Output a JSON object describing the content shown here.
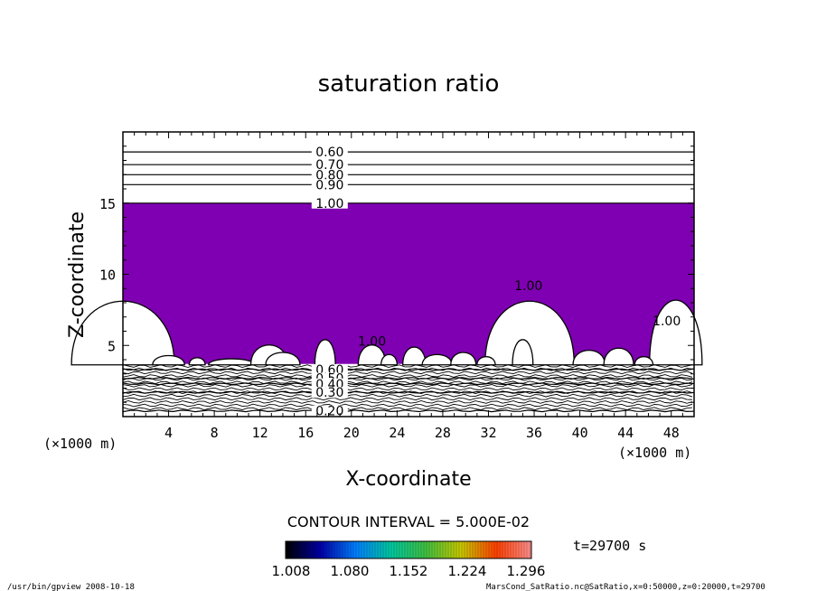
{
  "chart_data": {
    "type": "contour",
    "title": "saturation ratio",
    "xlabel": "X-coordinate",
    "ylabel": "Z-coordinate",
    "x_unit": "(×1000 m)",
    "y_unit": "(×1000 m)",
    "xlim": [
      0,
      50
    ],
    "ylim": [
      0,
      20
    ],
    "x_ticks": [
      4,
      8,
      12,
      16,
      20,
      24,
      28,
      32,
      36,
      40,
      44,
      48
    ],
    "y_ticks": [
      5,
      10,
      15
    ],
    "fill_color": "#7f00b2",
    "fill_threshold": 1.0,
    "saturated_region": {
      "z_bottom": 3.7,
      "z_top": 15.0,
      "note_values": "purple = saturation ratio above 1.00"
    },
    "upper_contours": [
      {
        "label": "0.60",
        "z": 18.6
      },
      {
        "label": "0.70",
        "z": 17.7
      },
      {
        "label": "0.80",
        "z": 17.0
      },
      {
        "label": "0.90",
        "z": 16.3
      },
      {
        "label": "1.00",
        "z": 15.0
      }
    ],
    "lower_contours": [
      {
        "label": "0.60",
        "z": 3.3
      },
      {
        "label": "0.50",
        "z": 2.7
      },
      {
        "label": "0.40",
        "z": 2.3
      },
      {
        "label": "0.30",
        "z": 1.7
      },
      {
        "label": "0.20",
        "z": 0.4
      }
    ],
    "inner_labels": [
      {
        "label": "1.00",
        "x": 35.5,
        "z": 8.9
      },
      {
        "label": "1.00",
        "x": 47.6,
        "z": 6.4
      },
      {
        "label": "1.00",
        "x": 21.8,
        "z": 5.0
      }
    ],
    "contour_interval": "CONTOUR INTERVAL = 5.000E-02",
    "colorbar": {
      "ticks": [
        "1.008",
        "1.080",
        "1.152",
        "1.224",
        "1.296"
      ],
      "colors": [
        "#000000",
        "#0000aa",
        "#0080ff",
        "#00c8a0",
        "#40c040",
        "#c8c800",
        "#ff4000",
        "#ff9090"
      ]
    },
    "time_label": "t=29700 s"
  },
  "footer": {
    "left": "/usr/bin/gpview   2008-10-18",
    "right": "MarsCond_SatRatio.nc@SatRatio,x=0:50000,z=0:20000,t=29700"
  }
}
